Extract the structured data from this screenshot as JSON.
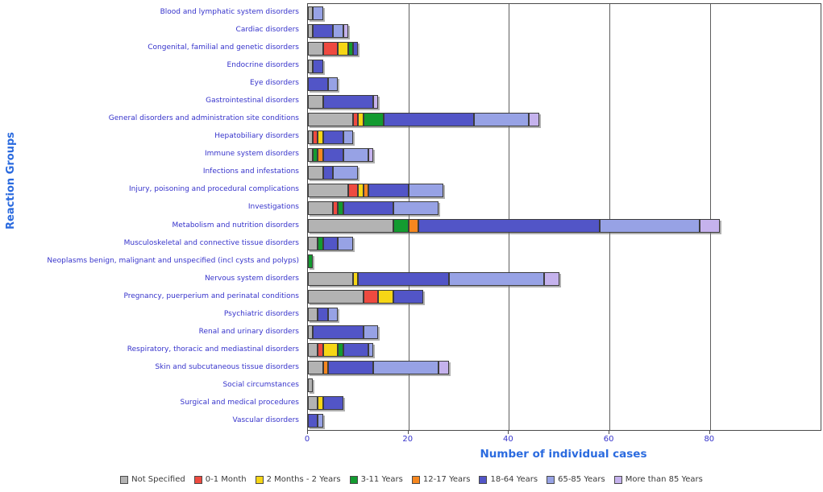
{
  "y_axis_title": "Reaction Groups",
  "x_axis_title": "Number of individual cases",
  "colors": {
    "axis_title_text": "#2b6bdf",
    "category_label_text": "#3633cb",
    "tick_label_text": "#3633cb",
    "gridline": "#5e5e5e",
    "segment_border": "#3c3c3c",
    "legend_text": "#3a3a3a"
  },
  "chart_data": {
    "type": "bar",
    "orientation": "horizontal",
    "stacked": true,
    "xlabel": "Number of individual cases",
    "ylabel": "Reaction Groups",
    "x_ticks": [
      0,
      20,
      40,
      60,
      80
    ],
    "xlim": [
      0,
      102
    ],
    "grid": true,
    "legend_position": "bottom",
    "series": [
      {
        "name": "Not Specified",
        "color": "#b3b3b3"
      },
      {
        "name": "0-1 Month",
        "color": "#ee4a40"
      },
      {
        "name": "2 Months - 2 Years",
        "color": "#f6d616"
      },
      {
        "name": "3-11 Years",
        "color": "#139b30"
      },
      {
        "name": "12-17 Years",
        "color": "#f6871f"
      },
      {
        "name": "18-64 Years",
        "color": "#5255c7"
      },
      {
        "name": "65-85 Years",
        "color": "#97a2e5"
      },
      {
        "name": "More than 85 Years",
        "color": "#c5b2ed"
      }
    ],
    "categories": [
      "Blood and lymphatic system disorders",
      "Cardiac disorders",
      "Congenital, familial and genetic disorders",
      "Endocrine disorders",
      "Eye disorders",
      "Gastrointestinal disorders",
      "General disorders and administration site conditions",
      "Hepatobiliary disorders",
      "Immune system disorders",
      "Infections and infestations",
      "Injury, poisoning and procedural complications",
      "Investigations",
      "Metabolism and nutrition disorders",
      "Musculoskeletal and connective tissue disorders",
      "Neoplasms benign, malignant and unspecified (incl cysts and polyps)",
      "Nervous system disorders",
      "Pregnancy, puerperium and perinatal conditions",
      "Psychiatric disorders",
      "Renal and urinary disorders",
      "Respiratory, thoracic and mediastinal disorders",
      "Skin and subcutaneous tissue disorders",
      "Social circumstances",
      "Surgical and medical procedures",
      "Vascular disorders"
    ],
    "values": [
      [
        1,
        0,
        0,
        0,
        0,
        0,
        2,
        0
      ],
      [
        1,
        0,
        0,
        0,
        0,
        4,
        2,
        1
      ],
      [
        3,
        3,
        2,
        1,
        0,
        1,
        0,
        0
      ],
      [
        1,
        0,
        0,
        0,
        0,
        2,
        0,
        0
      ],
      [
        0,
        0,
        0,
        0,
        0,
        4,
        2,
        0
      ],
      [
        3,
        0,
        0,
        0,
        0,
        10,
        0,
        1
      ],
      [
        9,
        1,
        1,
        4,
        0,
        18,
        11,
        2
      ],
      [
        1,
        1,
        1,
        0,
        0,
        4,
        2,
        0
      ],
      [
        1,
        0,
        0,
        1,
        1,
        4,
        5,
        1
      ],
      [
        3,
        0,
        0,
        0,
        0,
        2,
        5,
        0
      ],
      [
        8,
        2,
        1,
        0,
        1,
        8,
        7,
        0
      ],
      [
        5,
        1,
        0,
        1,
        0,
        10,
        9,
        0
      ],
      [
        17,
        0,
        0,
        3,
        2,
        36,
        20,
        4
      ],
      [
        2,
        0,
        0,
        1,
        0,
        3,
        3,
        0
      ],
      [
        0,
        0,
        0,
        1,
        0,
        0,
        0,
        0
      ],
      [
        9,
        0,
        1,
        0,
        0,
        18,
        19,
        3
      ],
      [
        11,
        3,
        3,
        0,
        0,
        6,
        0,
        0
      ],
      [
        2,
        0,
        0,
        0,
        0,
        2,
        2,
        0
      ],
      [
        1,
        0,
        0,
        0,
        0,
        10,
        3,
        0
      ],
      [
        2,
        1,
        3,
        1,
        0,
        5,
        1,
        0
      ],
      [
        3,
        0,
        0,
        0,
        1,
        9,
        13,
        2
      ],
      [
        1,
        0,
        0,
        0,
        0,
        0,
        0,
        0
      ],
      [
        2,
        0,
        1,
        0,
        0,
        4,
        0,
        0
      ],
      [
        0,
        0,
        0,
        0,
        0,
        2,
        1,
        0
      ]
    ]
  }
}
